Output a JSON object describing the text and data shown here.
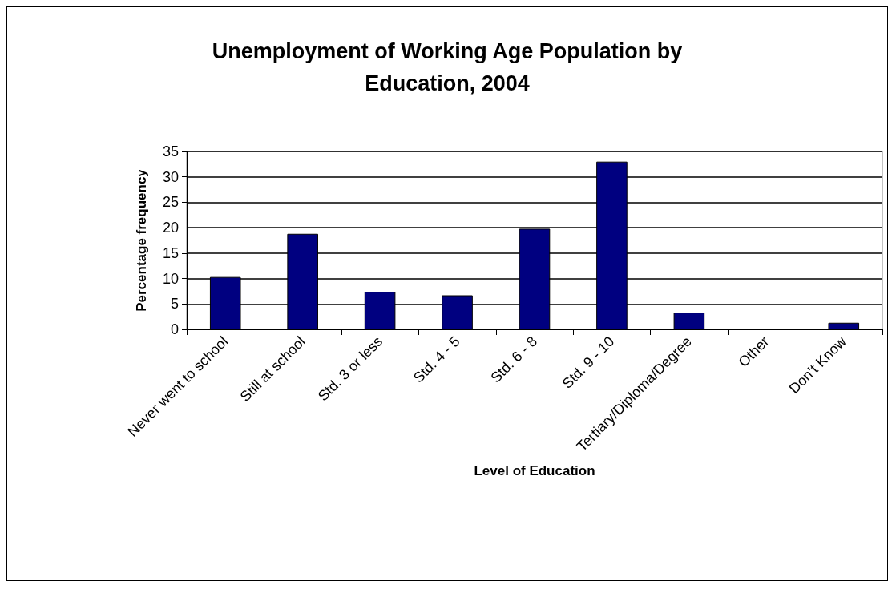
{
  "chart_data": {
    "type": "bar",
    "title": "Unemployment of Working Age Population by\nEducation, 2004",
    "xlabel": "Level of Education",
    "ylabel": "Percentage frequency",
    "categories": [
      "Never went to school",
      "Still at school",
      "Std. 3 or less",
      "Std. 4 - 5",
      "Std. 6 - 8",
      "Std. 9 - 10",
      "Tertiary/Diploma/Degree",
      "Other",
      "Don’t Know"
    ],
    "values": [
      10.3,
      18.8,
      7.4,
      6.7,
      19.8,
      33.0,
      3.3,
      0,
      1.3
    ],
    "color": "#000080",
    "ylim": [
      0,
      35
    ],
    "yticks": [
      0,
      5,
      10,
      15,
      20,
      25,
      30,
      35
    ],
    "grid": "y"
  }
}
